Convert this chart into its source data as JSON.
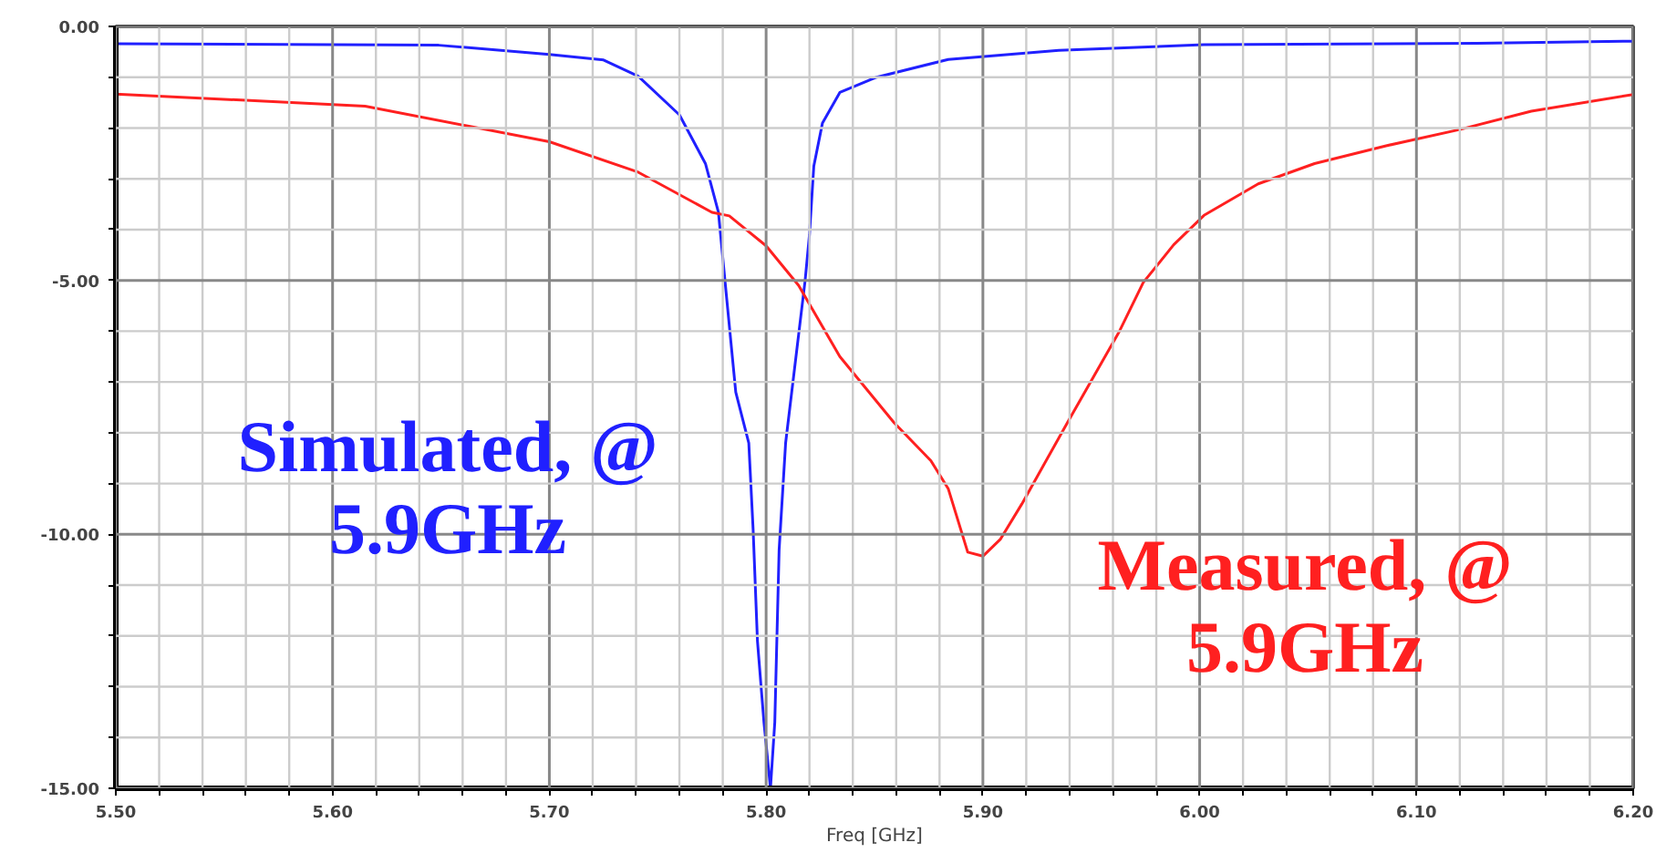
{
  "chart_data": {
    "type": "line",
    "xlabel": "Freq [GHz]",
    "xlim": [
      5.5,
      6.2
    ],
    "ylim": [
      -15,
      0
    ],
    "xticks": [
      {
        "value": 5.5,
        "label": "5.50"
      },
      {
        "value": 5.52,
        "label": null
      },
      {
        "value": 5.54,
        "label": null
      },
      {
        "value": 5.56,
        "label": null
      },
      {
        "value": 5.58,
        "label": null
      },
      {
        "value": 5.6,
        "label": "5.60"
      },
      {
        "value": 5.62,
        "label": null
      },
      {
        "value": 5.64,
        "label": null
      },
      {
        "value": 5.66,
        "label": null
      },
      {
        "value": 5.68,
        "label": null
      },
      {
        "value": 5.7,
        "label": "5.70"
      },
      {
        "value": 5.72,
        "label": null
      },
      {
        "value": 5.74,
        "label": null
      },
      {
        "value": 5.76,
        "label": null
      },
      {
        "value": 5.78,
        "label": null
      },
      {
        "value": 5.8,
        "label": "5.80"
      },
      {
        "value": 5.82,
        "label": null
      },
      {
        "value": 5.84,
        "label": null
      },
      {
        "value": 5.86,
        "label": null
      },
      {
        "value": 5.88,
        "label": null
      },
      {
        "value": 5.9,
        "label": "5.90"
      },
      {
        "value": 5.92,
        "label": null
      },
      {
        "value": 5.94,
        "label": null
      },
      {
        "value": 5.96,
        "label": null
      },
      {
        "value": 5.98,
        "label": null
      },
      {
        "value": 6.0,
        "label": "6.00"
      },
      {
        "value": 6.02,
        "label": null
      },
      {
        "value": 6.04,
        "label": null
      },
      {
        "value": 6.06,
        "label": null
      },
      {
        "value": 6.08,
        "label": null
      },
      {
        "value": 6.1,
        "label": "6.10"
      },
      {
        "value": 6.12,
        "label": null
      },
      {
        "value": 6.14,
        "label": null
      },
      {
        "value": 6.16,
        "label": null
      },
      {
        "value": 6.18,
        "label": null
      },
      {
        "value": 6.2,
        "label": "6.20"
      }
    ],
    "yticks": [
      {
        "value": -15,
        "label": "-15.00"
      },
      {
        "value": -14,
        "label": null
      },
      {
        "value": -13,
        "label": null
      },
      {
        "value": -12,
        "label": null
      },
      {
        "value": -11,
        "label": null
      },
      {
        "value": -10,
        "label": "-10.00"
      },
      {
        "value": -9,
        "label": null
      },
      {
        "value": -8,
        "label": null
      },
      {
        "value": -7,
        "label": null
      },
      {
        "value": -6,
        "label": null
      },
      {
        "value": -5,
        "label": "-5.00"
      },
      {
        "value": -4,
        "label": null
      },
      {
        "value": -3,
        "label": null
      },
      {
        "value": -2,
        "label": null
      },
      {
        "value": -1,
        "label": null
      },
      {
        "value": 0,
        "label": "0.00"
      }
    ],
    "grid": true,
    "series": [
      {
        "name": "Simulated, @\n5.9GHz",
        "color": "#2020ff",
        "x": [
          5.5,
          5.649,
          5.7,
          5.725,
          5.741,
          5.76,
          5.772,
          5.778,
          5.781,
          5.786,
          5.792,
          5.794,
          5.796,
          5.799,
          5.802,
          5.804,
          5.806,
          5.809,
          5.818,
          5.82,
          5.822,
          5.826,
          5.834,
          5.851,
          5.884,
          5.935,
          6.002,
          6.128,
          6.2
        ],
        "values": [
          -0.34,
          -0.37,
          -0.55,
          -0.66,
          -0.98,
          -1.74,
          -2.7,
          -3.66,
          -5.0,
          -7.2,
          -8.2,
          -9.9,
          -12.1,
          -13.7,
          -15.0,
          -13.7,
          -10.3,
          -8.2,
          -5.0,
          -4.1,
          -2.75,
          -1.9,
          -1.3,
          -1.0,
          -0.65,
          -0.47,
          -0.36,
          -0.33,
          -0.29
        ]
      },
      {
        "name": "Measured, @\n5.9GHz",
        "color": "#ff2020",
        "x": [
          5.5,
          5.615,
          5.7,
          5.741,
          5.775,
          5.783,
          5.8,
          5.815,
          5.834,
          5.859,
          5.876,
          5.884,
          5.893,
          5.9,
          5.908,
          5.918,
          5.939,
          5.963,
          5.974,
          5.988,
          6.002,
          6.027,
          6.053,
          6.086,
          6.12,
          6.153,
          6.2
        ],
        "values": [
          -1.33,
          -1.57,
          -2.27,
          -2.87,
          -3.66,
          -3.73,
          -4.32,
          -5.1,
          -6.5,
          -7.8,
          -8.55,
          -9.1,
          -10.35,
          -10.43,
          -10.1,
          -9.4,
          -7.8,
          -6.0,
          -5.04,
          -4.3,
          -3.72,
          -3.1,
          -2.7,
          -2.35,
          -2.03,
          -1.67,
          -1.34
        ]
      }
    ]
  }
}
